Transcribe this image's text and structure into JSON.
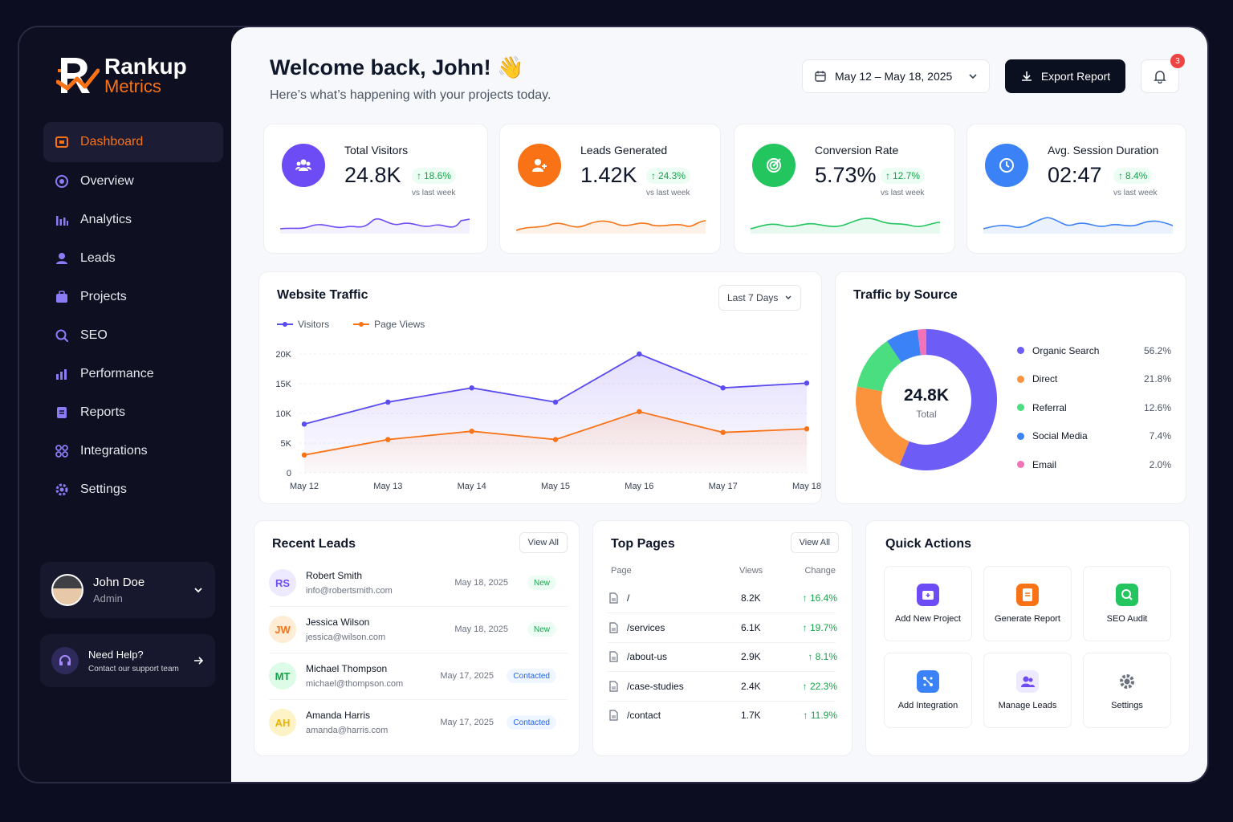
{
  "brand": {
    "name_line1": "Rankup",
    "name_line2": "Metrics"
  },
  "sidebar": {
    "items": [
      {
        "label": "Dashboard",
        "icon": "dashboard-icon"
      },
      {
        "label": "Overview",
        "icon": "overview-icon"
      },
      {
        "label": "Analytics",
        "icon": "analytics-icon"
      },
      {
        "label": "Leads",
        "icon": "leads-icon"
      },
      {
        "label": "Projects",
        "icon": "projects-icon"
      },
      {
        "label": "SEO",
        "icon": "search-icon"
      },
      {
        "label": "Performance",
        "icon": "performance-icon"
      },
      {
        "label": "Reports",
        "icon": "reports-icon"
      },
      {
        "label": "Integrations",
        "icon": "integrations-icon"
      },
      {
        "label": "Settings",
        "icon": "gear-icon"
      }
    ],
    "user": {
      "name": "John Doe",
      "role": "Admin"
    },
    "help": {
      "title": "Need Help?",
      "subtitle": "Contact our support team"
    }
  },
  "header": {
    "welcome": "Welcome back, John! 👋",
    "subtitle": "Here’s what’s happening with your projects today.",
    "date_range": "May 12 – May 18, 2025",
    "export_label": "Export Report",
    "notification_count": "3"
  },
  "stats": [
    {
      "label": "Total Visitors",
      "value": "24.8K",
      "change": "18.6%",
      "sub": "vs last week",
      "color": "#6d4cf6",
      "icon": "users-icon"
    },
    {
      "label": "Leads Generated",
      "value": "1.42K",
      "change": "24.3%",
      "sub": "vs last week",
      "color": "#f97316",
      "icon": "add-user-icon"
    },
    {
      "label": "Conversion Rate",
      "value": "5.73%",
      "change": "12.7%",
      "sub": "vs last week",
      "color": "#22c55e",
      "icon": "target-icon"
    },
    {
      "label": "Avg. Session Duration",
      "value": "02:47",
      "change": "8.4%",
      "sub": "vs last week",
      "color": "#3b82f6",
      "icon": "clock-icon"
    }
  ],
  "traffic": {
    "title": "Website Traffic",
    "range_label": "Last 7 Days"
  },
  "chart_data": [
    {
      "type": "line",
      "title": "Website Traffic",
      "categories": [
        "May 12",
        "May 13",
        "May 14",
        "May 15",
        "May 16",
        "May 17",
        "May 18"
      ],
      "yticks": [
        "0",
        "5K",
        "10K",
        "15K",
        "20K"
      ],
      "ylim": [
        0,
        20000
      ],
      "legend": "top-left",
      "grid": true,
      "series": [
        {
          "name": "Visitors",
          "color": "#5b4cf0",
          "values": [
            8200,
            11900,
            14300,
            11900,
            20000,
            14300,
            15100
          ]
        },
        {
          "name": "Page Views",
          "color": "#f97316",
          "values": [
            3000,
            5600,
            7000,
            5600,
            10300,
            6800,
            7400
          ]
        }
      ]
    },
    {
      "type": "pie",
      "title": "Traffic by Source",
      "center_value": "24.8K",
      "center_label": "Total",
      "slices": [
        {
          "name": "Organic Search",
          "value": 56.2,
          "label": "56.2%",
          "color": "#6d5cf6"
        },
        {
          "name": "Direct",
          "value": 21.8,
          "label": "21.8%",
          "color": "#fb923c"
        },
        {
          "name": "Referral",
          "value": 12.6,
          "label": "12.6%",
          "color": "#4ade80"
        },
        {
          "name": "Social Media",
          "value": 7.4,
          "label": "7.4%",
          "color": "#3b82f6"
        },
        {
          "name": "Email",
          "value": 2.0,
          "label": "2.0%",
          "color": "#f472b6"
        }
      ]
    }
  ],
  "leads": {
    "title": "Recent Leads",
    "view_all": "View All",
    "rows": [
      {
        "initials": "RS",
        "name": "Robert Smith",
        "email": "info@robertsmith.com",
        "date": "May 18, 2025",
        "status": "New",
        "avatar_bg": "#ede9fe",
        "avatar_fg": "#6d4cf6"
      },
      {
        "initials": "JW",
        "name": "Jessica Wilson",
        "email": "jessica@wilson.com",
        "date": "May 18, 2025",
        "status": "New",
        "avatar_bg": "#ffedd5",
        "avatar_fg": "#f97316"
      },
      {
        "initials": "MT",
        "name": "Michael Thompson",
        "email": "michael@thompson.com",
        "date": "May 17, 2025",
        "status": "Contacted",
        "avatar_bg": "#dcfce7",
        "avatar_fg": "#16a34a"
      },
      {
        "initials": "AH",
        "name": "Amanda Harris",
        "email": "amanda@harris.com",
        "date": "May 17, 2025",
        "status": "Contacted",
        "avatar_bg": "#fef3c7",
        "avatar_fg": "#eab308"
      }
    ]
  },
  "top_pages": {
    "title": "Top Pages",
    "view_all": "View All",
    "columns": [
      "Page",
      "Views",
      "Change"
    ],
    "rows": [
      {
        "page": "/",
        "views": "8.2K",
        "change": "↑ 16.4%"
      },
      {
        "page": "/services",
        "views": "6.1K",
        "change": "↑ 19.7%"
      },
      {
        "page": "/about-us",
        "views": "2.9K",
        "change": "↑ 8.1%"
      },
      {
        "page": "/case-studies",
        "views": "2.4K",
        "change": "↑ 22.3%"
      },
      {
        "page": "/contact",
        "views": "1.7K",
        "change": "↑ 11.9%"
      }
    ]
  },
  "quick_actions": {
    "title": "Quick Actions",
    "items": [
      {
        "label": "Add New Project",
        "icon": "folder-plus-icon",
        "color": "#6d4cf6"
      },
      {
        "label": "Generate Report",
        "icon": "report-icon",
        "color": "#f97316"
      },
      {
        "label": "SEO Audit",
        "icon": "search-icon",
        "color": "#22c55e"
      },
      {
        "label": "Add Integration",
        "icon": "integration-icon",
        "color": "#3b82f6"
      },
      {
        "label": "Manage Leads",
        "icon": "users-icon",
        "color": "#6d4cf6"
      },
      {
        "label": "Settings",
        "icon": "gear-icon",
        "color": "#6b7280"
      }
    ]
  }
}
